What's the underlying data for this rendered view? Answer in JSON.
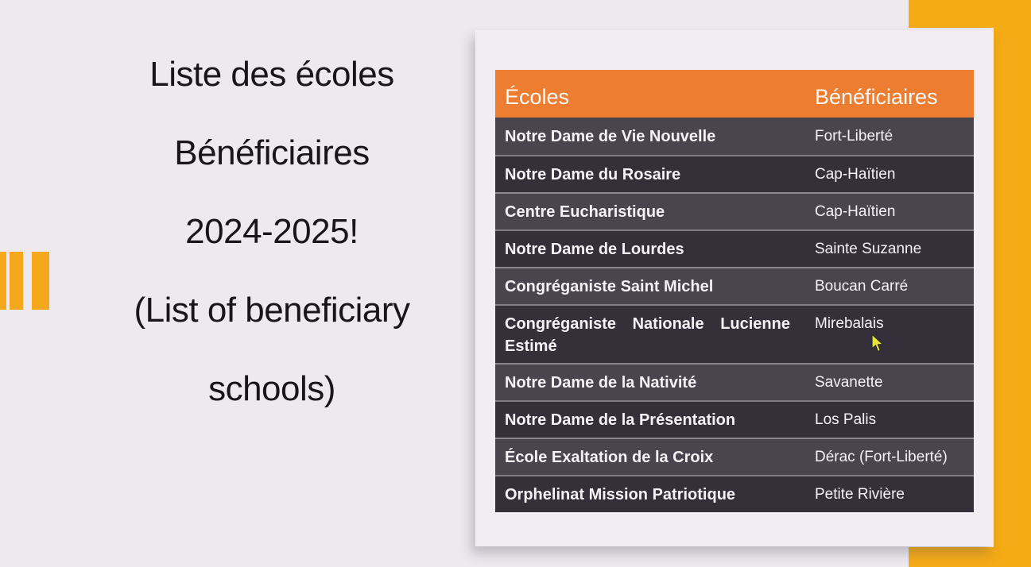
{
  "slide": {
    "colors": {
      "background": "#EDE9EF",
      "card": "#F1EDF3",
      "accent_yellow": "#F4AB16",
      "bars_yellow": "#F5A81C",
      "header_orange": "#ED7D31",
      "row_medium": "#4A444E",
      "row_dark": "#352F3A",
      "header_text": "#FDF8F4",
      "row_text": "#F4F2F4",
      "title_text": "#18161A",
      "cursor_yellow": "#E3E53C"
    }
  },
  "title": {
    "lines": [
      "Liste des écoles",
      "Bénéficiaires",
      "2024-2025!",
      "(List of  beneficiary",
      "schools)"
    ]
  },
  "table": {
    "headers": [
      "Écoles",
      "Bénéficiaires"
    ],
    "rows": [
      {
        "school": "Notre Dame de Vie Nouvelle",
        "beneficiary": "Fort-Liberté"
      },
      {
        "school": "Notre Dame du Rosaire",
        "beneficiary": "Cap-Haïtien"
      },
      {
        "school": "Centre Eucharistique",
        "beneficiary": "Cap-Haïtien"
      },
      {
        "school": "Notre Dame de Lourdes",
        "beneficiary": "Sainte Suzanne"
      },
      {
        "school": "Congréganiste Saint Michel",
        "beneficiary": "Boucan Carré"
      },
      {
        "school": "Congréganiste Nationale Lucienne Estimé",
        "beneficiary": "Mirebalais",
        "school_line1_words": [
          "Congréganiste",
          "Nationale",
          "Lucienne"
        ],
        "school_line2": "Estimé"
      },
      {
        "school": "Notre Dame de la Nativité",
        "beneficiary": "Savanette"
      },
      {
        "school": "Notre Dame de la Présentation",
        "beneficiary": "Los Palis"
      },
      {
        "school": "École Exaltation de la Croix",
        "beneficiary": "Dérac (Fort-Liberté)"
      },
      {
        "school": "Orphelinat Mission Patriotique",
        "beneficiary": "Petite Rivière"
      }
    ]
  }
}
